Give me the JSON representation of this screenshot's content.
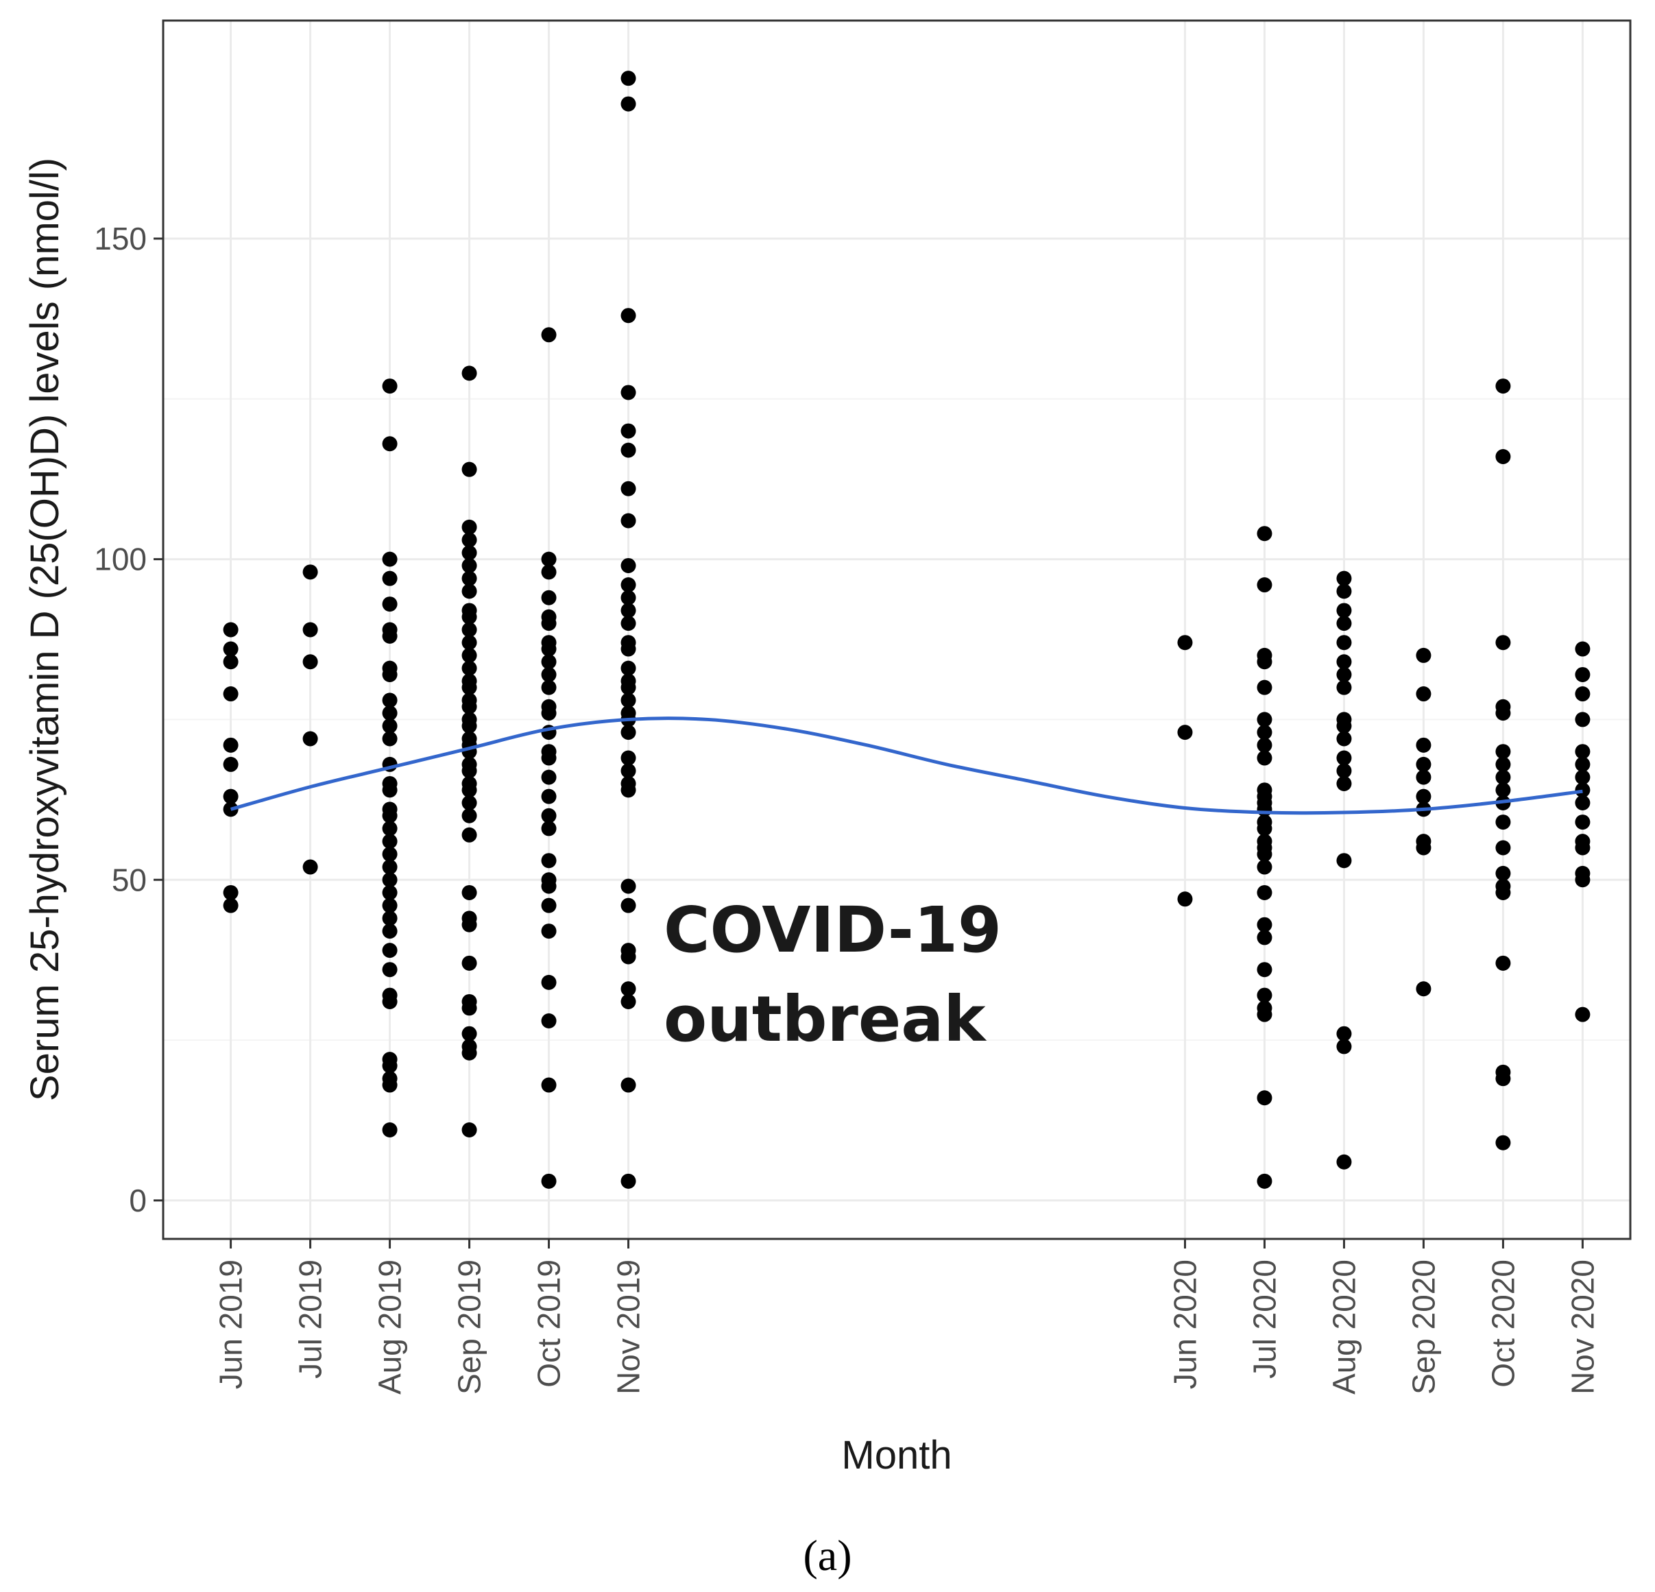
{
  "chart_data": {
    "type": "scatter",
    "xlabel": "Month",
    "ylabel": "Serum 25-hydroxyvitamin D (25(OH)D) levels (nmol/l)",
    "ylim": [
      -6,
      184
    ],
    "y_ticks": [
      0,
      50,
      100,
      150
    ],
    "x_ticks": [
      "Jun 2019",
      "Jul 2019",
      "Aug 2019",
      "Sep 2019",
      "Oct 2019",
      "Nov 2019",
      "Jun 2020",
      "Jul 2020",
      "Aug 2020",
      "Sep 2020",
      "Oct 2020",
      "Nov 2020"
    ],
    "x_tick_positions_month_index": [
      0,
      1,
      2,
      3,
      4,
      5,
      12,
      13,
      14,
      15,
      16,
      17
    ],
    "xlim_month_index": [
      -0.85,
      17.6
    ],
    "grid": true,
    "annotation": [
      "COVID-19",
      "outbreak"
    ],
    "panel_label": "(a)",
    "colors": {
      "points": "#000000",
      "smooth": "#3366cc",
      "grid": "#ebebeb",
      "border": "#333333"
    },
    "series": [
      {
        "name": "Jun 2019",
        "x": 0,
        "values": [
          89,
          86,
          84,
          79,
          71,
          68,
          63,
          61,
          48,
          46
        ]
      },
      {
        "name": "Jul 2019",
        "x": 1,
        "values": [
          98,
          89,
          84,
          72,
          52
        ]
      },
      {
        "name": "Aug 2019",
        "x": 2,
        "values": [
          127,
          118,
          100,
          97,
          93,
          89,
          88,
          83,
          82,
          78,
          76,
          74,
          72,
          68,
          65,
          64,
          61,
          60,
          58,
          56,
          54,
          52,
          50,
          48,
          46,
          44,
          42,
          39,
          36,
          32,
          31,
          22,
          21,
          19,
          18,
          11
        ]
      },
      {
        "name": "Sep 2019",
        "x": 3,
        "values": [
          129,
          114,
          105,
          103,
          101,
          99,
          97,
          95,
          92,
          91,
          89,
          87,
          85,
          83,
          81,
          80,
          78,
          77,
          75,
          74,
          72,
          71,
          70,
          68,
          67,
          65,
          64,
          62,
          60,
          57,
          48,
          44,
          43,
          37,
          31,
          30,
          26,
          24,
          23,
          11
        ]
      },
      {
        "name": "Oct 2019",
        "x": 4,
        "values": [
          135,
          100,
          98,
          94,
          91,
          90,
          87,
          86,
          84,
          82,
          80,
          77,
          76,
          73,
          70,
          69,
          66,
          63,
          60,
          58,
          53,
          50,
          49,
          46,
          42,
          34,
          28,
          18,
          3
        ]
      },
      {
        "name": "Nov 2019",
        "x": 5,
        "values": [
          175,
          171,
          138,
          126,
          120,
          117,
          111,
          106,
          99,
          96,
          94,
          92,
          90,
          87,
          86,
          83,
          81,
          80,
          78,
          76,
          75,
          73,
          69,
          67,
          65,
          64,
          49,
          46,
          39,
          38,
          33,
          31,
          18,
          3
        ]
      },
      {
        "name": "Jun 2020",
        "x": 12,
        "values": [
          87,
          73,
          47
        ]
      },
      {
        "name": "Jul 2020",
        "x": 13,
        "values": [
          104,
          96,
          85,
          84,
          80,
          75,
          73,
          71,
          69,
          64,
          63,
          62,
          61,
          59,
          58,
          56,
          55,
          54,
          52,
          48,
          43,
          41,
          36,
          32,
          30,
          29,
          16,
          3
        ]
      },
      {
        "name": "Aug 2020",
        "x": 14,
        "values": [
          97,
          95,
          92,
          90,
          87,
          84,
          82,
          80,
          75,
          74,
          72,
          69,
          67,
          65,
          53,
          26,
          24,
          6
        ]
      },
      {
        "name": "Sep 2020",
        "x": 15,
        "values": [
          85,
          79,
          71,
          68,
          66,
          63,
          61,
          56,
          55,
          33
        ]
      },
      {
        "name": "Oct 2020",
        "x": 16,
        "values": [
          127,
          116,
          87,
          77,
          76,
          70,
          68,
          66,
          64,
          62,
          59,
          55,
          51,
          49,
          48,
          37,
          20,
          19,
          9
        ]
      },
      {
        "name": "Nov 2020",
        "x": 17,
        "values": [
          86,
          82,
          79,
          75,
          70,
          68,
          66,
          64,
          62,
          59,
          56,
          55,
          51,
          50,
          29
        ]
      }
    ],
    "smooth_line": {
      "name": "trend",
      "x": [
        0,
        1,
        2,
        3,
        4,
        5,
        6,
        7,
        8,
        9,
        10,
        11,
        12,
        13,
        14,
        15,
        16,
        17
      ],
      "y": [
        61,
        64.5,
        67.5,
        70.5,
        73.5,
        75,
        75,
        73.5,
        71,
        68,
        65.5,
        63,
        61.2,
        60.5,
        60.5,
        61,
        62.2,
        63.8
      ]
    }
  }
}
